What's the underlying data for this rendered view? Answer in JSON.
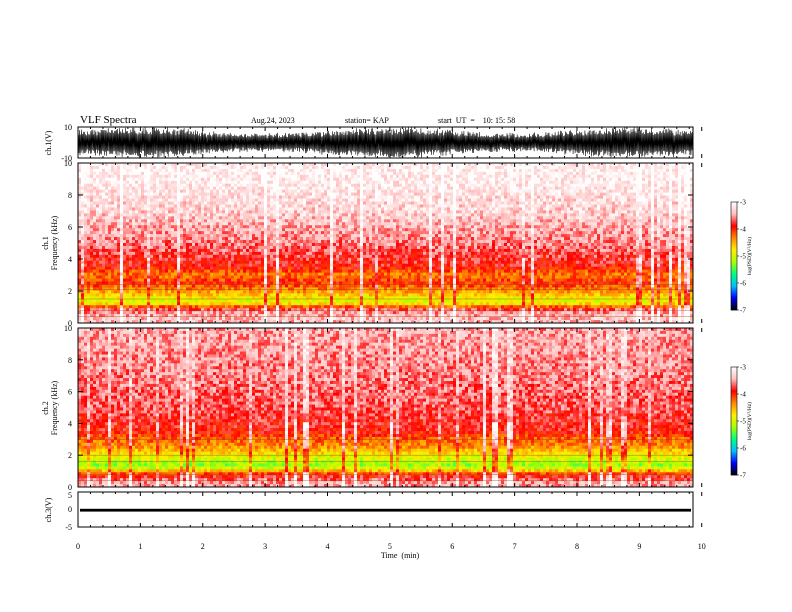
{
  "header": {
    "title": "VLF Spectra",
    "date": "Aug.24, 2023",
    "station": "station= KAP",
    "start": "start  UT  =    10: 15: 58"
  },
  "colors": {
    "scale": [
      "#000000",
      "#0000ff",
      "#00bfff",
      "#00ff80",
      "#a8ff00",
      "#ffee00",
      "#ff8800",
      "#ff0000",
      "#ffc0c0",
      "#ffffff"
    ],
    "trace": "#000000",
    "line": "#000000"
  },
  "chart_data": [
    {
      "type": "line",
      "panel": "ch1-waveform",
      "ylabel": "ch.1(V)",
      "ylim": [
        -10,
        10
      ],
      "ytick_labels": [
        "-10",
        "10"
      ],
      "x_range_min": [
        0,
        10
      ],
      "note_values": "waveform oscillates roughly between -9 and +9 V throughout"
    },
    {
      "type": "heatmap",
      "panel": "ch1-spectrogram",
      "ylabel": "ch.1\nFrequency (kHz)",
      "ylim": [
        0,
        10
      ],
      "ytick_labels": [
        "0",
        "2",
        "4",
        "6",
        "8",
        "10"
      ],
      "xlim": [
        0,
        10
      ],
      "band_profile": [
        {
          "khz": 0.3,
          "level": -3.4
        },
        {
          "khz": 0.8,
          "level": -3.6
        },
        {
          "khz": 1.3,
          "level": -5.0
        },
        {
          "khz": 1.8,
          "level": -4.6
        },
        {
          "khz": 2.5,
          "level": -4.0
        },
        {
          "khz": 3.0,
          "level": -4.3
        },
        {
          "khz": 3.5,
          "level": -3.9
        },
        {
          "khz": 5.0,
          "level": -3.6
        },
        {
          "khz": 7.0,
          "level": -3.3
        },
        {
          "khz": 9.5,
          "level": -3.1
        }
      ],
      "colorbar": {
        "label": "log(PSD)(V²/Hz)",
        "range": [
          -7,
          -3
        ],
        "tick_labels": [
          "-3",
          "-4",
          "-5",
          "-6",
          "-7"
        ]
      }
    },
    {
      "type": "heatmap",
      "panel": "ch2-spectrogram",
      "ylabel": "ch.2\nFrequency (kHz)",
      "ylim": [
        0,
        10
      ],
      "ytick_labels": [
        "0",
        "2",
        "4",
        "6",
        "8",
        "10"
      ],
      "xlim": [
        0,
        10
      ],
      "band_profile": [
        {
          "khz": 0.3,
          "level": -3.5
        },
        {
          "khz": 0.8,
          "level": -4.0
        },
        {
          "khz": 1.3,
          "level": -5.3
        },
        {
          "khz": 1.8,
          "level": -5.0
        },
        {
          "khz": 2.5,
          "level": -4.4
        },
        {
          "khz": 3.0,
          "level": -4.2
        },
        {
          "khz": 3.5,
          "level": -3.9
        },
        {
          "khz": 5.0,
          "level": -3.7
        },
        {
          "khz": 7.0,
          "level": -3.6
        },
        {
          "khz": 9.5,
          "level": -3.5
        }
      ],
      "colorbar": {
        "label": "log(PSD)(V²/Hz)",
        "range": [
          -7,
          -3
        ],
        "tick_labels": [
          "-3",
          "-4",
          "-5",
          "-6",
          "-7"
        ]
      }
    },
    {
      "type": "line",
      "panel": "ch3-waveform",
      "ylabel": "ch.3(V)",
      "ylim": [
        -5,
        5
      ],
      "ytick_labels": [
        "-5",
        "0",
        "5"
      ],
      "level_band_V": [
        -0.6,
        0.2
      ],
      "xlabel": "Time  (min)",
      "xlim": [
        0,
        10
      ],
      "xtick_labels": [
        "0",
        "1",
        "2",
        "3",
        "4",
        "5",
        "6",
        "7",
        "8",
        "9",
        "10"
      ]
    }
  ]
}
